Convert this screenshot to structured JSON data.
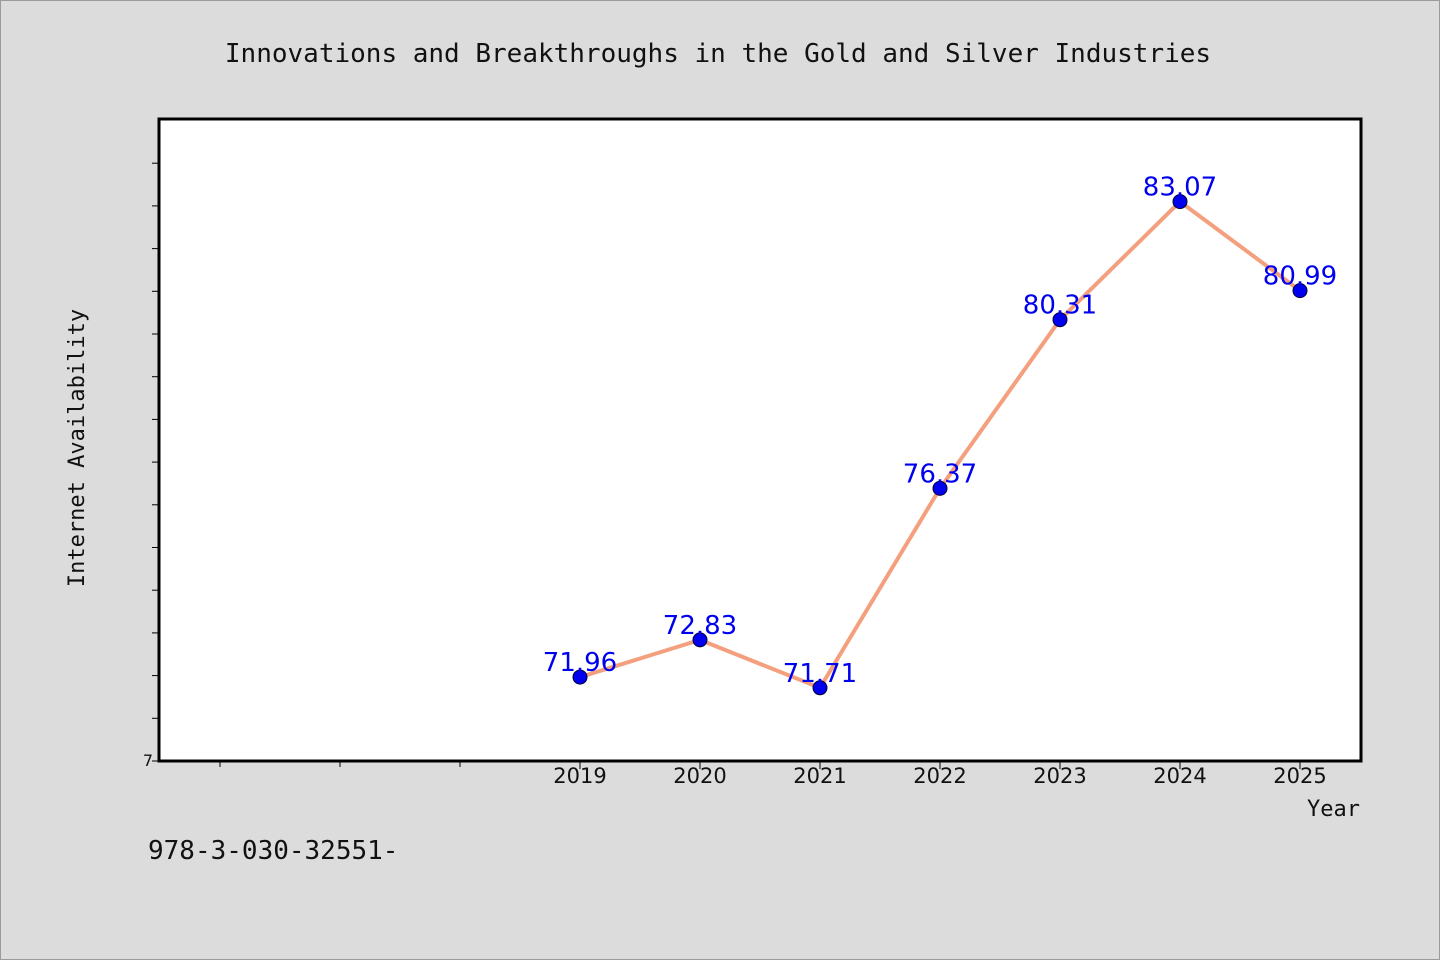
{
  "chart_data": {
    "type": "line",
    "title": "Innovations and Breakthroughs in the Gold and Silver Industries",
    "xlabel": "Year",
    "ylabel": "Internet Availability",
    "categories": [
      "2019",
      "2020",
      "2021",
      "2022",
      "2023",
      "2024",
      "2025"
    ],
    "series": [
      {
        "values": [
          71.96,
          72.83,
          71.71,
          76.37,
          80.31,
          83.07,
          80.99
        ],
        "data_labels": [
          "71.96",
          "72.83",
          "71.71",
          "76.37",
          "80.31",
          "83.07",
          "80.99"
        ],
        "line_color": "#f4a07e",
        "marker_color": "#0000ee"
      }
    ],
    "ytick_label": "7",
    "ylim": [
      70,
      85
    ],
    "grid": false,
    "legend": "none"
  },
  "footnote": "978-3-030-32551-"
}
